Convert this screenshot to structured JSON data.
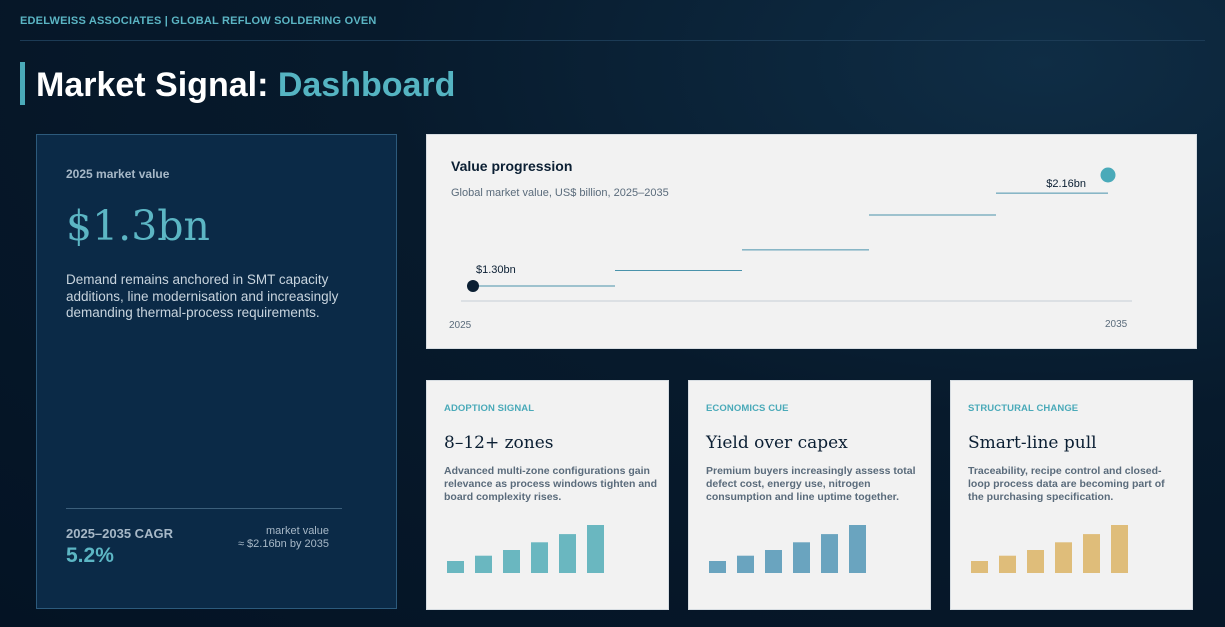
{
  "header": {
    "brand_line": "EDELWEISS ASSOCIATES | GLOBAL REFLOW SOLDERING OVEN",
    "title_main": "Market Signal: ",
    "title_accent": "Dashboard"
  },
  "left_panel": {
    "label": "2025 market value",
    "value": "$1.3bn",
    "description": "Demand remains anchored in SMT capacity additions, line modernisation and increasingly demanding thermal-process requirements.",
    "cagr_label": "2025–2035 CAGR",
    "cagr_value": "5.2%",
    "side_line1": "market value",
    "side_line2": "≈ $2.16bn by 2035"
  },
  "colors": {
    "accent": "#55b4c2",
    "dark_navy": "#0b2a47",
    "start_dot": "#0b1f33",
    "teal_bar": "#6ab7c0",
    "blue_bar": "#6aa4bf",
    "gold_bar": "#dfbd7a"
  },
  "chart_data": {
    "type": "line",
    "title": "Value progression",
    "subtitle": "Global market value, US$ billion, 2025–2035",
    "x_tick_labels": [
      "2025",
      "2035"
    ],
    "x": [
      2025,
      2027,
      2029,
      2031,
      2033,
      2035
    ],
    "values": [
      1.3,
      1.42,
      1.58,
      1.85,
      2.02,
      2.16
    ],
    "point_labels": {
      "start": "$1.30bn",
      "end": "$2.16bn"
    },
    "xlim": [
      2025,
      2035
    ],
    "ylim": [
      1.1,
      2.2
    ],
    "grid": false
  },
  "cards": [
    {
      "tag": "ADOPTION SIGNAL",
      "headline": "8–12+ zones",
      "text": "Advanced multi-zone configurations gain relevance as process windows tighten and board complexity rises.",
      "bars": [
        0.25,
        0.36,
        0.48,
        0.64,
        0.81,
        1.0
      ],
      "bar_color": "#6ab7c0"
    },
    {
      "tag": "ECONOMICS CUE",
      "headline": "Yield over capex",
      "text": "Premium buyers increasingly assess total defect cost, energy use, nitrogen consumption and line uptime together.",
      "bars": [
        0.25,
        0.36,
        0.48,
        0.64,
        0.81,
        1.0
      ],
      "bar_color": "#6aa4bf"
    },
    {
      "tag": "STRUCTURAL CHANGE",
      "headline": "Smart-line pull",
      "text": "Traceability, recipe control and closed-loop process data are becoming part of the purchasing specification.",
      "bars": [
        0.25,
        0.36,
        0.48,
        0.64,
        0.81,
        1.0
      ],
      "bar_color": "#dfbd7a"
    }
  ]
}
